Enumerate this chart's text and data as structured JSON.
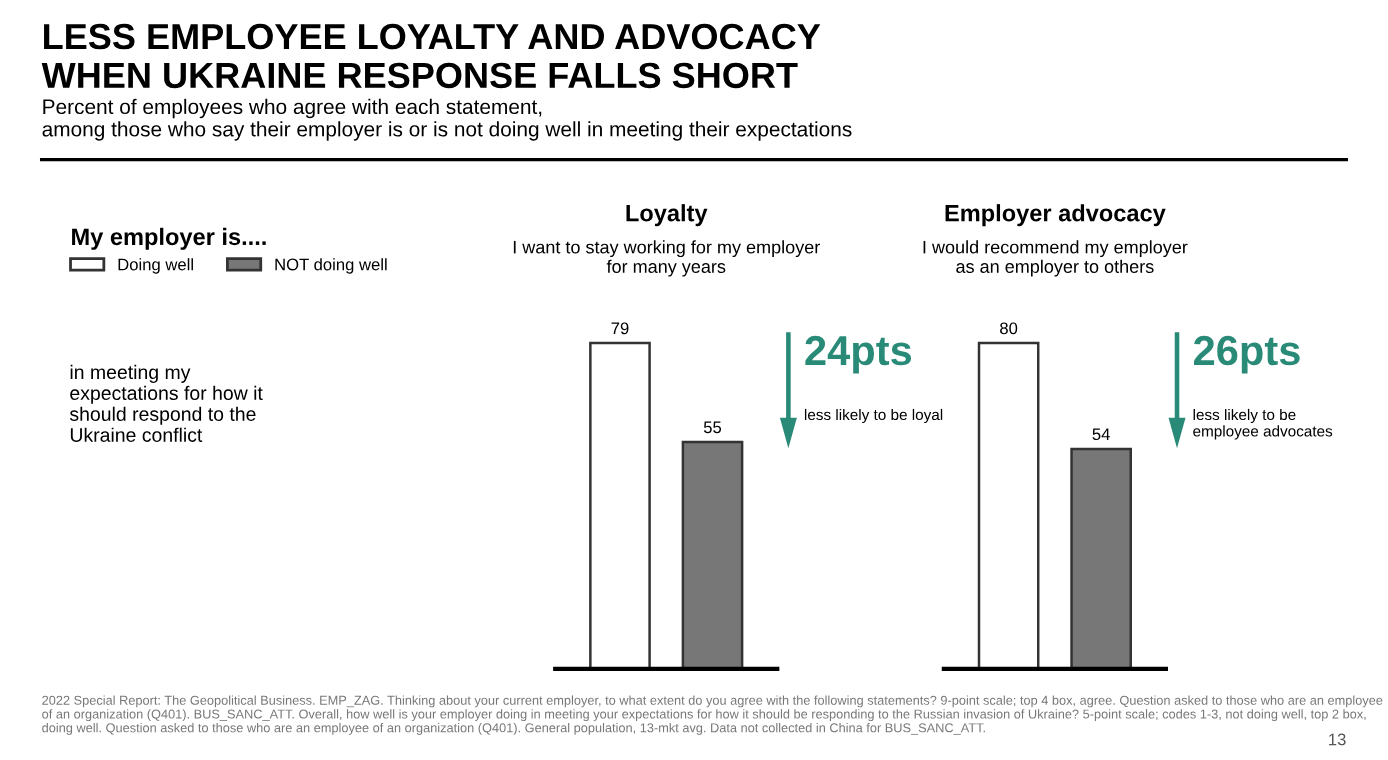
{
  "chart_data": [
    {
      "type": "other",
      "title": "LESS EMPLOYEE LOYALTY AND ADVOCACY\nWHEN UKRAINE RESPONSE FALLS SHORT",
      "subtitle": "Percent of employees who agree with each statement,\namong those who say their employer is or is not doing well in meeting their expectations",
      "annotations": [
        "2022 Special Report: The Geopolitical Business. EMP_ZAG. Thinking about your current employer, to what extent do you agree with the following statements? 9-point scale; top 4 box, agree. Question asked to those who are an employee of an organization (Q401). BUS_SANC_ATT. Overall, how well is your employer doing in meeting your expectations for how it should be responding to the Russian invasion of Ukraine? 5-point scale; codes 1-3, not doing well, top 2 box, doing well. Question asked to those who are an employee of an organization (Q401). General population, 13-mkt avg. Data not collected in China for BUS_SANC_ATT.",
        "13"
      ]
    },
    {
      "type": "bar",
      "title": "Loyalty",
      "subtitle": "I want to stay working for my employer\nfor many years",
      "categories": [
        null
      ],
      "series": [
        {
          "name": "Doing well",
          "color": "#ffffff",
          "values": [
            79
          ]
        },
        {
          "name": "NOT doing well",
          "color": "#777777",
          "values": [
            55
          ]
        }
      ],
      "data_labels": true,
      "legend": "left",
      "legend_title": "My employer is....",
      "annotations": [
        "24pts",
        "less likely to be loyal",
        "in meeting my\nexpectations for how it\nshould respond to the\nUkraine conflict"
      ]
    },
    {
      "type": "bar",
      "title": "Employer advocacy",
      "subtitle": "I would recommend my employer\nas an employer to others",
      "categories": [
        null
      ],
      "series": [
        {
          "color": "#ffffff",
          "values": [
            80
          ]
        },
        {
          "color": "#777777",
          "values": [
            54
          ]
        }
      ],
      "data_labels": true,
      "annotations": [
        "26pts",
        "less likely to be\nemployee advocates"
      ]
    }
  ]
}
